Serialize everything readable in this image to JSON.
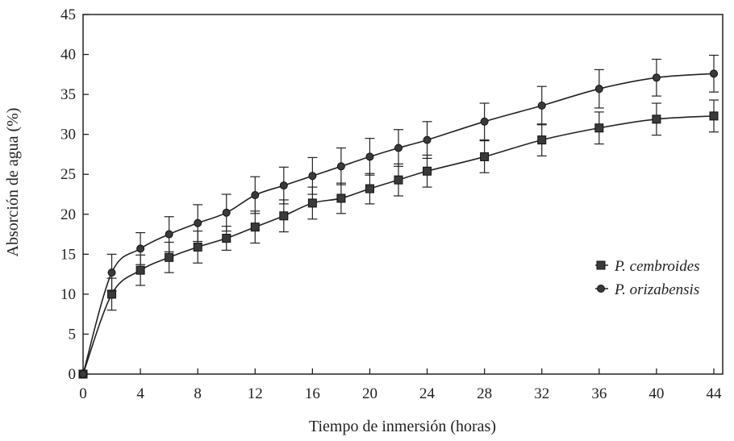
{
  "chart_data": {
    "type": "line",
    "title": "",
    "xlabel": "Tiempo de inmersión (horas)",
    "ylabel": "Absorción de agua (%)",
    "xlim": [
      0,
      44
    ],
    "ylim": [
      0,
      45
    ],
    "xticks": [
      0,
      4,
      8,
      12,
      16,
      20,
      24,
      28,
      32,
      36,
      40,
      44
    ],
    "yticks": [
      0,
      5,
      10,
      15,
      20,
      25,
      30,
      35,
      40,
      45
    ],
    "grid": false,
    "legend_position": "right",
    "series": [
      {
        "name": "P. cembroides",
        "marker": "square",
        "x": [
          0,
          2,
          4,
          6,
          8,
          10,
          12,
          14,
          16,
          18,
          20,
          22,
          24,
          28,
          32,
          36,
          40,
          44
        ],
        "values": [
          0,
          10.0,
          13.0,
          14.6,
          15.9,
          17.0,
          18.4,
          19.8,
          21.4,
          22.0,
          23.2,
          24.3,
          25.4,
          27.2,
          29.3,
          30.8,
          31.9,
          32.3
        ],
        "error": [
          0,
          2.0,
          1.9,
          1.9,
          2.0,
          1.5,
          2.0,
          2.0,
          2.0,
          1.9,
          1.9,
          2.0,
          2.0,
          2.0,
          2.0,
          2.0,
          2.0,
          2.0
        ]
      },
      {
        "name": "P. orizabensis",
        "marker": "circle",
        "x": [
          0,
          2,
          4,
          6,
          8,
          10,
          12,
          14,
          16,
          18,
          20,
          22,
          24,
          28,
          32,
          36,
          40,
          44
        ],
        "values": [
          0,
          12.7,
          15.7,
          17.5,
          18.9,
          20.2,
          22.4,
          23.6,
          24.8,
          26.0,
          27.2,
          28.3,
          29.3,
          31.6,
          33.6,
          35.7,
          37.1,
          37.6
        ],
        "error": [
          0,
          2.3,
          2.0,
          2.2,
          2.3,
          2.3,
          2.3,
          2.3,
          2.3,
          2.3,
          2.3,
          2.3,
          2.3,
          2.3,
          2.4,
          2.4,
          2.3,
          2.3
        ]
      }
    ]
  }
}
